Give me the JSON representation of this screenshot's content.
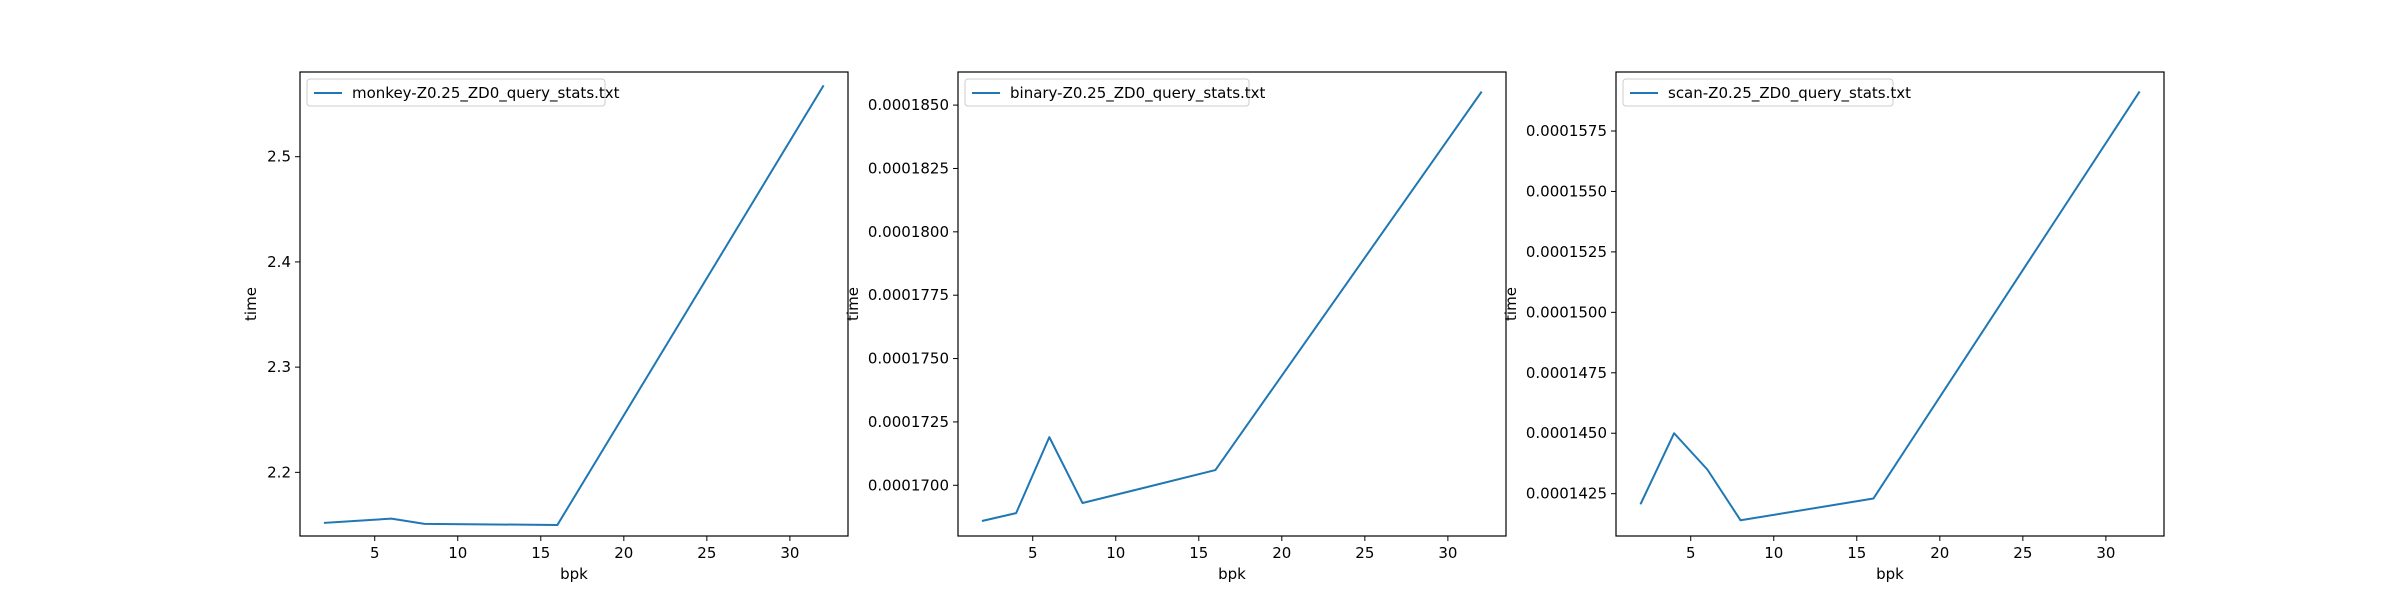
{
  "chart_data": [
    {
      "type": "line",
      "title": "",
      "xlabel": "bpk",
      "ylabel": "time",
      "grid": false,
      "legend_position": "top-left",
      "xlim": [
        0.5,
        33.5
      ],
      "ylim": [
        2.1395,
        2.5805
      ],
      "xticks": [
        5,
        10,
        15,
        20,
        25,
        30
      ],
      "xtick_labels": [
        "5",
        "10",
        "15",
        "20",
        "25",
        "30"
      ],
      "yticks": [
        2.2,
        2.3,
        2.4,
        2.5
      ],
      "ytick_labels": [
        "2.2",
        "2.3",
        "2.4",
        "2.5"
      ],
      "color": "#1f77b4",
      "series": [
        {
          "name": "monkey-Z0.25_ZD0_query_stats.txt",
          "x": [
            2,
            4,
            6,
            8,
            16,
            32
          ],
          "values": [
            2.152,
            2.154,
            2.156,
            2.151,
            2.15,
            2.567
          ]
        }
      ]
    },
    {
      "type": "line",
      "title": "",
      "xlabel": "bpk",
      "ylabel": "time",
      "grid": false,
      "legend_position": "top-left",
      "xlim": [
        0.5,
        33.5
      ],
      "ylim": [
        0.000167999,
        0.000186306
      ],
      "xticks": [
        5,
        10,
        15,
        20,
        25,
        30
      ],
      "xtick_labels": [
        "5",
        "10",
        "15",
        "20",
        "25",
        "30"
      ],
      "yticks": [
        0.00017,
        0.0001725,
        0.000175,
        0.0001775,
        0.00018,
        0.0001825,
        0.000185
      ],
      "ytick_labels": [
        "0.0001700",
        "0.0001725",
        "0.0001750",
        "0.0001775",
        "0.0001800",
        "0.0001825",
        "0.0001850"
      ],
      "color": "#1f77b4",
      "series": [
        {
          "name": "binary-Z0.25_ZD0_query_stats.txt",
          "x": [
            2,
            4,
            6,
            8,
            16,
            32
          ],
          "values": [
            0.0001686,
            0.0001689,
            0.0001719,
            0.0001693,
            0.0001706,
            0.0001855
          ]
        }
      ]
    },
    {
      "type": "line",
      "title": "",
      "xlabel": "bpk",
      "ylabel": "time",
      "grid": false,
      "legend_position": "top-left",
      "xlim": [
        0.5,
        33.5
      ],
      "ylim": [
        0.00014075,
        0.00015994
      ],
      "xticks": [
        5,
        10,
        15,
        20,
        25,
        30
      ],
      "xtick_labels": [
        "5",
        "10",
        "15",
        "20",
        "25",
        "30"
      ],
      "yticks": [
        0.0001425,
        0.000145,
        0.0001475,
        0.00015,
        0.0001525,
        0.000155,
        0.0001575
      ],
      "ytick_labels": [
        "0.0001425",
        "0.0001450",
        "0.0001475",
        "0.0001500",
        "0.0001525",
        "0.0001550",
        "0.0001575"
      ],
      "color": "#1f77b4",
      "series": [
        {
          "name": "scan-Z0.25_ZD0_query_stats.txt",
          "x": [
            2,
            4,
            6,
            8,
            16,
            32
          ],
          "values": [
            0.0001421,
            0.000145,
            0.0001435,
            0.0001414,
            0.0001423,
            0.0001591
          ]
        }
      ]
    }
  ]
}
